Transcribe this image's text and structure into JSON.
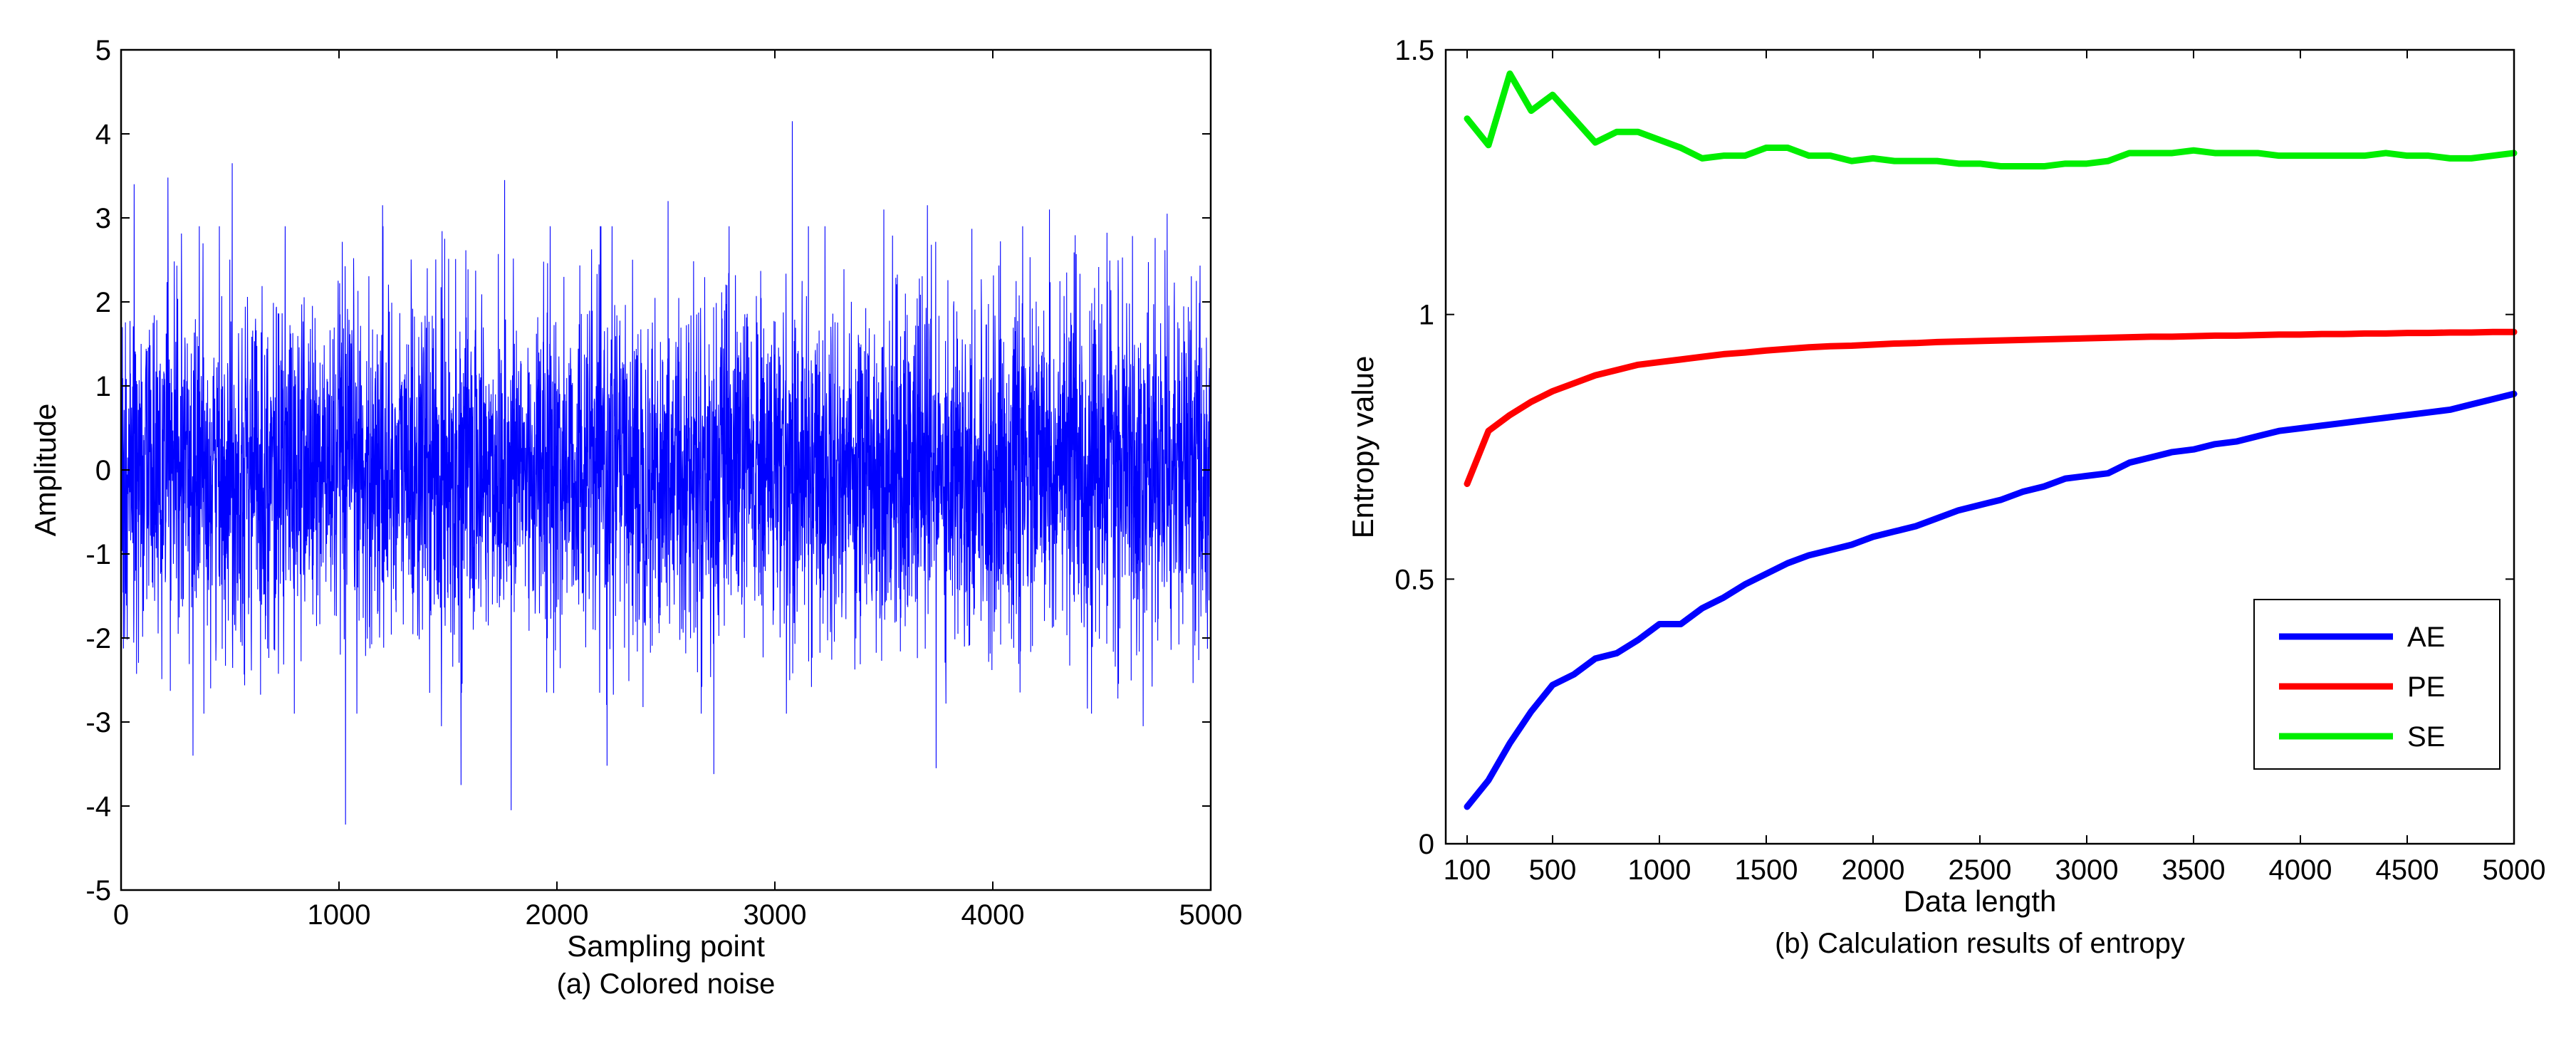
{
  "chart_data": [
    {
      "type": "line",
      "id": "colored-noise",
      "title": "",
      "caption": "(a) Colored noise",
      "xlabel": "Sampling point",
      "ylabel": "Amplitude",
      "xlim": [
        0,
        5000
      ],
      "ylim": [
        -5,
        5
      ],
      "xticks": [
        0,
        1000,
        2000,
        3000,
        4000,
        5000
      ],
      "yticks": [
        -5,
        -4,
        -3,
        -2,
        -1,
        0,
        1,
        2,
        3,
        4,
        5
      ],
      "grid": false,
      "color": "#0000ff",
      "n_points": 5000,
      "noise_std": 1.0,
      "extremes": [
        {
          "x": 1030,
          "y": -4.22
        },
        {
          "x": 3080,
          "y": 4.15
        },
        {
          "x": 1790,
          "y": -4.05
        },
        {
          "x": 510,
          "y": 3.65
        },
        {
          "x": 2720,
          "y": -3.62
        },
        {
          "x": 3740,
          "y": -3.55
        },
        {
          "x": 1560,
          "y": -3.75
        },
        {
          "x": 215,
          "y": 3.48
        },
        {
          "x": 60,
          "y": 3.4
        },
        {
          "x": 1200,
          "y": 3.15
        },
        {
          "x": 1760,
          "y": 3.45
        },
        {
          "x": 2230,
          "y": -3.52
        },
        {
          "x": 3700,
          "y": 3.15
        },
        {
          "x": 4690,
          "y": -3.05
        },
        {
          "x": 4800,
          "y": 3.05
        },
        {
          "x": 2510,
          "y": 3.2
        },
        {
          "x": 4260,
          "y": 3.1
        },
        {
          "x": 330,
          "y": -3.4
        },
        {
          "x": 1470,
          "y": -3.05
        },
        {
          "x": 3500,
          "y": 3.1
        }
      ]
    },
    {
      "type": "line",
      "id": "entropy-results",
      "title": "",
      "caption": "(b) Calculation results of entropy",
      "xlabel": "Data length",
      "ylabel": "Entropy value",
      "xlim": [
        0,
        5000
      ],
      "ylim": [
        0,
        1.5
      ],
      "xticks": [
        100,
        500,
        1000,
        1500,
        2000,
        2500,
        3000,
        3500,
        4000,
        4500,
        5000
      ],
      "yticks": [
        0,
        0.5,
        1,
        1.5
      ],
      "ytick_labels": [
        "0",
        "0.5",
        "1",
        "1.5"
      ],
      "grid": false,
      "legend_position": "lower-right",
      "x": [
        100,
        200,
        300,
        400,
        500,
        600,
        700,
        800,
        900,
        1000,
        1100,
        1200,
        1300,
        1400,
        1500,
        1600,
        1700,
        1800,
        1900,
        2000,
        2100,
        2200,
        2300,
        2400,
        2500,
        2600,
        2700,
        2800,
        2900,
        3000,
        3100,
        3200,
        3300,
        3400,
        3500,
        3600,
        3700,
        3800,
        3900,
        4000,
        4100,
        4200,
        4300,
        4400,
        4500,
        4600,
        4700,
        4800,
        4900,
        5000
      ],
      "series": [
        {
          "name": "AE",
          "color": "#0000ff",
          "values": [
            0.07,
            0.12,
            0.19,
            0.25,
            0.3,
            0.32,
            0.35,
            0.36,
            0.385,
            0.415,
            0.415,
            0.445,
            0.465,
            0.49,
            0.51,
            0.53,
            0.545,
            0.555,
            0.565,
            0.58,
            0.59,
            0.6,
            0.615,
            0.63,
            0.64,
            0.65,
            0.665,
            0.675,
            0.69,
            0.695,
            0.7,
            0.72,
            0.73,
            0.74,
            0.745,
            0.755,
            0.76,
            0.77,
            0.78,
            0.785,
            0.79,
            0.795,
            0.8,
            0.805,
            0.81,
            0.815,
            0.82,
            0.83,
            0.84,
            0.85
          ]
        },
        {
          "name": "PE",
          "color": "#ff0000",
          "values": [
            0.68,
            0.78,
            0.81,
            0.835,
            0.855,
            0.87,
            0.885,
            0.895,
            0.905,
            0.91,
            0.915,
            0.92,
            0.925,
            0.928,
            0.932,
            0.935,
            0.938,
            0.94,
            0.941,
            0.943,
            0.945,
            0.946,
            0.948,
            0.949,
            0.95,
            0.951,
            0.952,
            0.953,
            0.954,
            0.955,
            0.956,
            0.957,
            0.958,
            0.958,
            0.959,
            0.96,
            0.96,
            0.961,
            0.962,
            0.962,
            0.963,
            0.963,
            0.964,
            0.964,
            0.965,
            0.965,
            0.966,
            0.966,
            0.967,
            0.967
          ]
        },
        {
          "name": "SE",
          "color": "#00ee00",
          "values": [
            1.37,
            1.32,
            1.455,
            1.385,
            1.415,
            1.37,
            1.325,
            1.345,
            1.345,
            1.33,
            1.315,
            1.295,
            1.3,
            1.3,
            1.315,
            1.315,
            1.3,
            1.3,
            1.29,
            1.295,
            1.29,
            1.29,
            1.29,
            1.285,
            1.285,
            1.28,
            1.28,
            1.28,
            1.285,
            1.285,
            1.29,
            1.305,
            1.305,
            1.305,
            1.31,
            1.305,
            1.305,
            1.305,
            1.3,
            1.3,
            1.3,
            1.3,
            1.3,
            1.305,
            1.3,
            1.3,
            1.295,
            1.295,
            1.3,
            1.305
          ]
        }
      ]
    }
  ]
}
